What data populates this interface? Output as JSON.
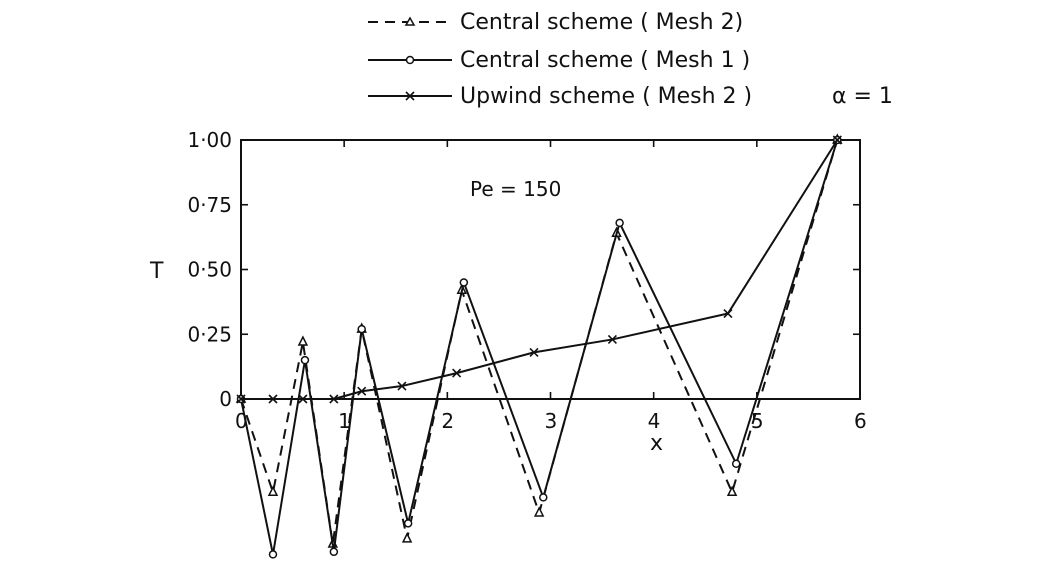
{
  "chart_data": {
    "type": "line",
    "title": "",
    "annotation": "Pe = 150",
    "xlabel": "x",
    "ylabel": "T",
    "xlim": [
      0,
      6
    ],
    "ylim": [
      -0.6,
      1.0
    ],
    "x_ticks": [
      "0",
      "1",
      "2",
      "3",
      "4",
      "5",
      "6"
    ],
    "y_ticks": [
      "0",
      "0·25",
      "0·50",
      "0·75",
      "1·00"
    ],
    "alpha_label": "α = 1",
    "grid": false,
    "legend_position": "top",
    "series": [
      {
        "name": "Central scheme (Mesh 2)",
        "legend_text": "Central scheme  ( Mesh 2)",
        "style": "dashed",
        "marker": "triangle",
        "points": [
          [
            0.0,
            0.0
          ],
          [
            0.31,
            -0.36
          ],
          [
            0.6,
            0.22
          ],
          [
            0.89,
            -0.56
          ],
          [
            1.17,
            0.27
          ],
          [
            1.61,
            -0.54
          ],
          [
            2.14,
            0.42
          ],
          [
            2.89,
            -0.44
          ],
          [
            3.64,
            0.64
          ],
          [
            4.76,
            -0.36
          ],
          [
            5.78,
            1.0
          ]
        ]
      },
      {
        "name": "Central scheme (Mesh 1)",
        "legend_text": "Central scheme  ( Mesh 1 )",
        "style": "solid",
        "marker": "circle",
        "points": [
          [
            0.0,
            0.0
          ],
          [
            0.31,
            -0.6
          ],
          [
            0.62,
            0.15
          ],
          [
            0.9,
            -0.59
          ],
          [
            1.17,
            0.27
          ],
          [
            1.62,
            -0.48
          ],
          [
            2.16,
            0.45
          ],
          [
            2.93,
            -0.38
          ],
          [
            3.67,
            0.68
          ],
          [
            4.8,
            -0.25
          ],
          [
            5.78,
            1.0
          ]
        ]
      },
      {
        "name": "Upwind scheme (Mesh 2)",
        "legend_text": "Upwind scheme  ( Mesh 2 )",
        "style": "solid",
        "marker": "x",
        "points": [
          [
            0.0,
            0.0
          ],
          [
            0.31,
            0.0
          ],
          [
            0.6,
            0.0
          ],
          [
            0.9,
            0.0
          ],
          [
            1.17,
            0.03
          ],
          [
            1.56,
            0.05
          ],
          [
            2.09,
            0.1
          ],
          [
            2.84,
            0.18
          ],
          [
            3.6,
            0.23
          ],
          [
            4.72,
            0.33
          ],
          [
            5.78,
            1.0
          ]
        ]
      }
    ]
  }
}
